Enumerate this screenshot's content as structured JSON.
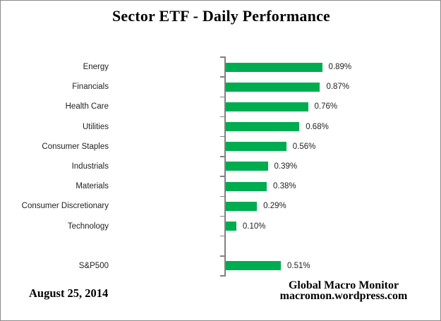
{
  "title": "Sector ETF - Daily Performance",
  "footer": {
    "date": "August 25, 2014",
    "source_line1": "Global Macro Monitor",
    "source_line2": "macromon.wordpress.com"
  },
  "colors": {
    "bar": "#00AC50",
    "axis": "#808080",
    "text": "#1f1f1f",
    "frame_border": "#8a8a8a"
  },
  "chart_data": {
    "type": "bar",
    "orientation": "horizontal",
    "title": "Sector ETF - Daily Performance",
    "categories": [
      "Energy",
      "Financials",
      "Health Care",
      "Utilities",
      "Consumer Staples",
      "Industrials",
      "Materials",
      "Consumer Discretionary",
      "Technology",
      "",
      "S&P500"
    ],
    "values": [
      0.89,
      0.87,
      0.76,
      0.68,
      0.56,
      0.39,
      0.38,
      0.29,
      0.1,
      null,
      0.51
    ],
    "data_labels": [
      "0.89%",
      "0.87%",
      "0.76%",
      "0.68%",
      "0.56%",
      "0.39%",
      "0.38%",
      "0.29%",
      "0.10%",
      "",
      "0.51%"
    ],
    "value_unit": "percent",
    "xlim": [
      0,
      1.9
    ],
    "grid": false,
    "legend": false,
    "data_labels_position": "outside-end",
    "category_axis_side": "left"
  }
}
